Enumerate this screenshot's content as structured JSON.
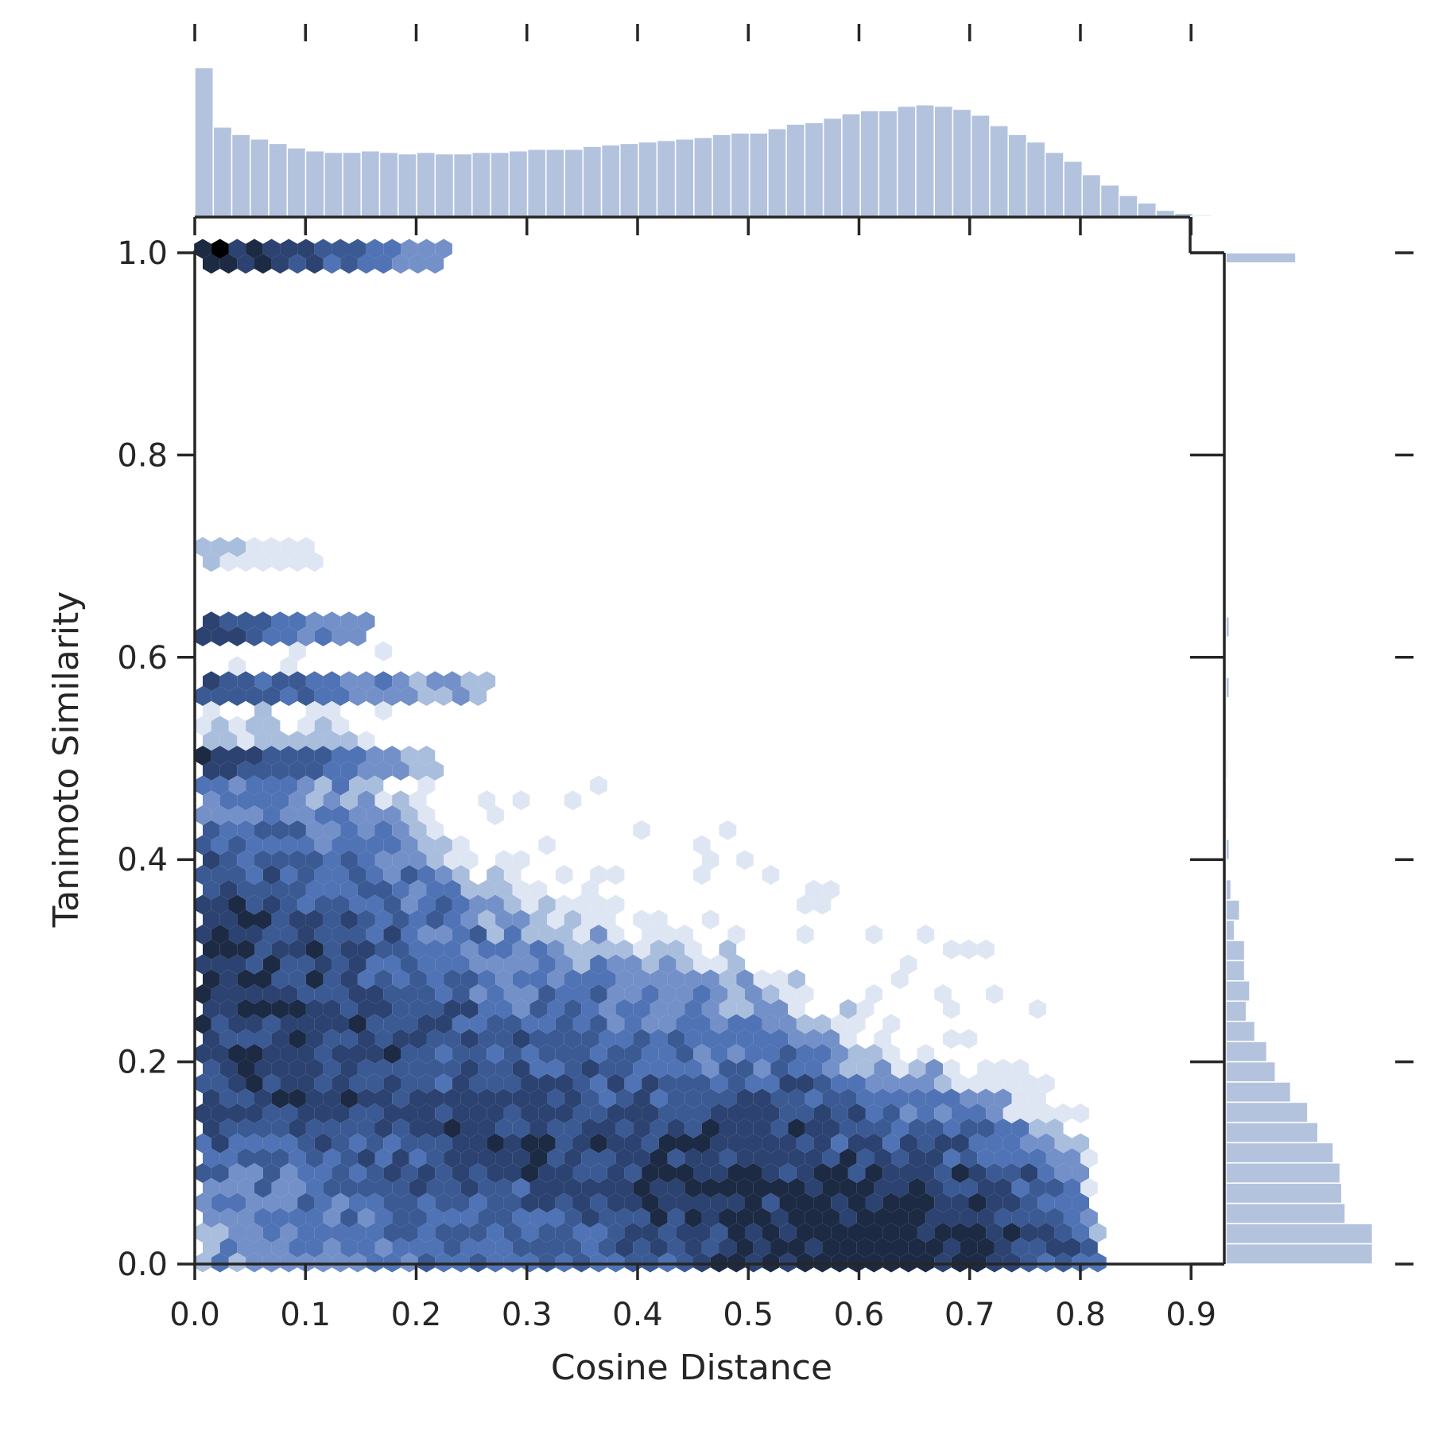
{
  "chart_data": {
    "type": "hexbin",
    "xlabel": "Cosine Distance",
    "ylabel": "Tanimoto Similarity",
    "xlim": [
      0.0,
      0.93
    ],
    "ylim": [
      0.0,
      1.0
    ],
    "xticks": [
      "0.0",
      "0.1",
      "0.2",
      "0.3",
      "0.4",
      "0.5",
      "0.6",
      "0.7",
      "0.8",
      "0.9"
    ],
    "yticks": [
      "0.0",
      "0.2",
      "0.4",
      "0.6",
      "0.8",
      "1.0"
    ],
    "colormap": [
      "#ffffff",
      "#dfe6f3",
      "#a9bddd",
      "#7390c8",
      "#4f73b4",
      "#3b5a94",
      "#2c4270",
      "#1c2a44"
    ],
    "marginal_color": "#b3c3de",
    "grid": false,
    "density_peaks": [
      {
        "x": 0.6,
        "y": 0.02,
        "weight": 1.0
      },
      {
        "x": 0.48,
        "y": 0.08,
        "weight": 0.8
      },
      {
        "x": 0.3,
        "y": 0.13,
        "weight": 0.7
      },
      {
        "x": 0.1,
        "y": 0.2,
        "weight": 0.75
      },
      {
        "x": 0.02,
        "y": 0.3,
        "weight": 0.8
      }
    ],
    "streaks": [
      {
        "y": 1.0,
        "x_end": 0.23,
        "level": 7
      },
      {
        "y": 0.7,
        "x_end": 0.11,
        "level": 2
      },
      {
        "y": 0.63,
        "x_end": 0.16,
        "level": 6
      },
      {
        "y": 0.57,
        "x_end": 0.27,
        "level": 5
      },
      {
        "y": 0.5,
        "x_end": 0.22,
        "level": 6
      }
    ],
    "upper_bound": [
      [
        0.0,
        0.55
      ],
      [
        0.12,
        0.55
      ],
      [
        0.25,
        0.4
      ],
      [
        0.4,
        0.34
      ],
      [
        0.5,
        0.31
      ],
      [
        0.6,
        0.24
      ],
      [
        0.68,
        0.21
      ],
      [
        0.74,
        0.18
      ],
      [
        0.8,
        0.12
      ],
      [
        0.82,
        0.04
      ]
    ],
    "x_marginal": {
      "bin_start": 0.0,
      "bin_width": 0.0167,
      "counts": [
        1.0,
        0.6,
        0.55,
        0.52,
        0.49,
        0.46,
        0.44,
        0.43,
        0.43,
        0.44,
        0.43,
        0.42,
        0.43,
        0.42,
        0.42,
        0.43,
        0.43,
        0.44,
        0.45,
        0.45,
        0.45,
        0.47,
        0.48,
        0.49,
        0.5,
        0.51,
        0.52,
        0.53,
        0.55,
        0.56,
        0.56,
        0.59,
        0.62,
        0.63,
        0.66,
        0.69,
        0.71,
        0.71,
        0.74,
        0.75,
        0.74,
        0.72,
        0.68,
        0.61,
        0.55,
        0.5,
        0.43,
        0.37,
        0.28,
        0.21,
        0.14,
        0.09,
        0.04,
        0.02,
        0.01
      ]
    },
    "y_marginal": {
      "bins": [
        {
          "y": 1.0,
          "count": 0.41
        },
        {
          "y": 0.63,
          "count": 0.02
        },
        {
          "y": 0.57,
          "count": 0.02
        },
        {
          "y": 0.49,
          "count": 0.01
        },
        {
          "y": 0.45,
          "count": 0.01
        },
        {
          "y": 0.41,
          "count": 0.02
        },
        {
          "y": 0.37,
          "count": 0.03
        },
        {
          "y": 0.35,
          "count": 0.08
        },
        {
          "y": 0.33,
          "count": 0.05
        },
        {
          "y": 0.31,
          "count": 0.11
        },
        {
          "y": 0.29,
          "count": 0.11
        },
        {
          "y": 0.27,
          "count": 0.14
        },
        {
          "y": 0.25,
          "count": 0.12
        },
        {
          "y": 0.23,
          "count": 0.17
        },
        {
          "y": 0.21,
          "count": 0.24
        },
        {
          "y": 0.19,
          "count": 0.29
        },
        {
          "y": 0.17,
          "count": 0.38
        },
        {
          "y": 0.15,
          "count": 0.48
        },
        {
          "y": 0.13,
          "count": 0.54
        },
        {
          "y": 0.11,
          "count": 0.63
        },
        {
          "y": 0.09,
          "count": 0.67
        },
        {
          "y": 0.07,
          "count": 0.68
        },
        {
          "y": 0.05,
          "count": 0.7
        },
        {
          "y": 0.03,
          "count": 0.86
        },
        {
          "y": 0.01,
          "count": 0.86
        }
      ]
    }
  }
}
